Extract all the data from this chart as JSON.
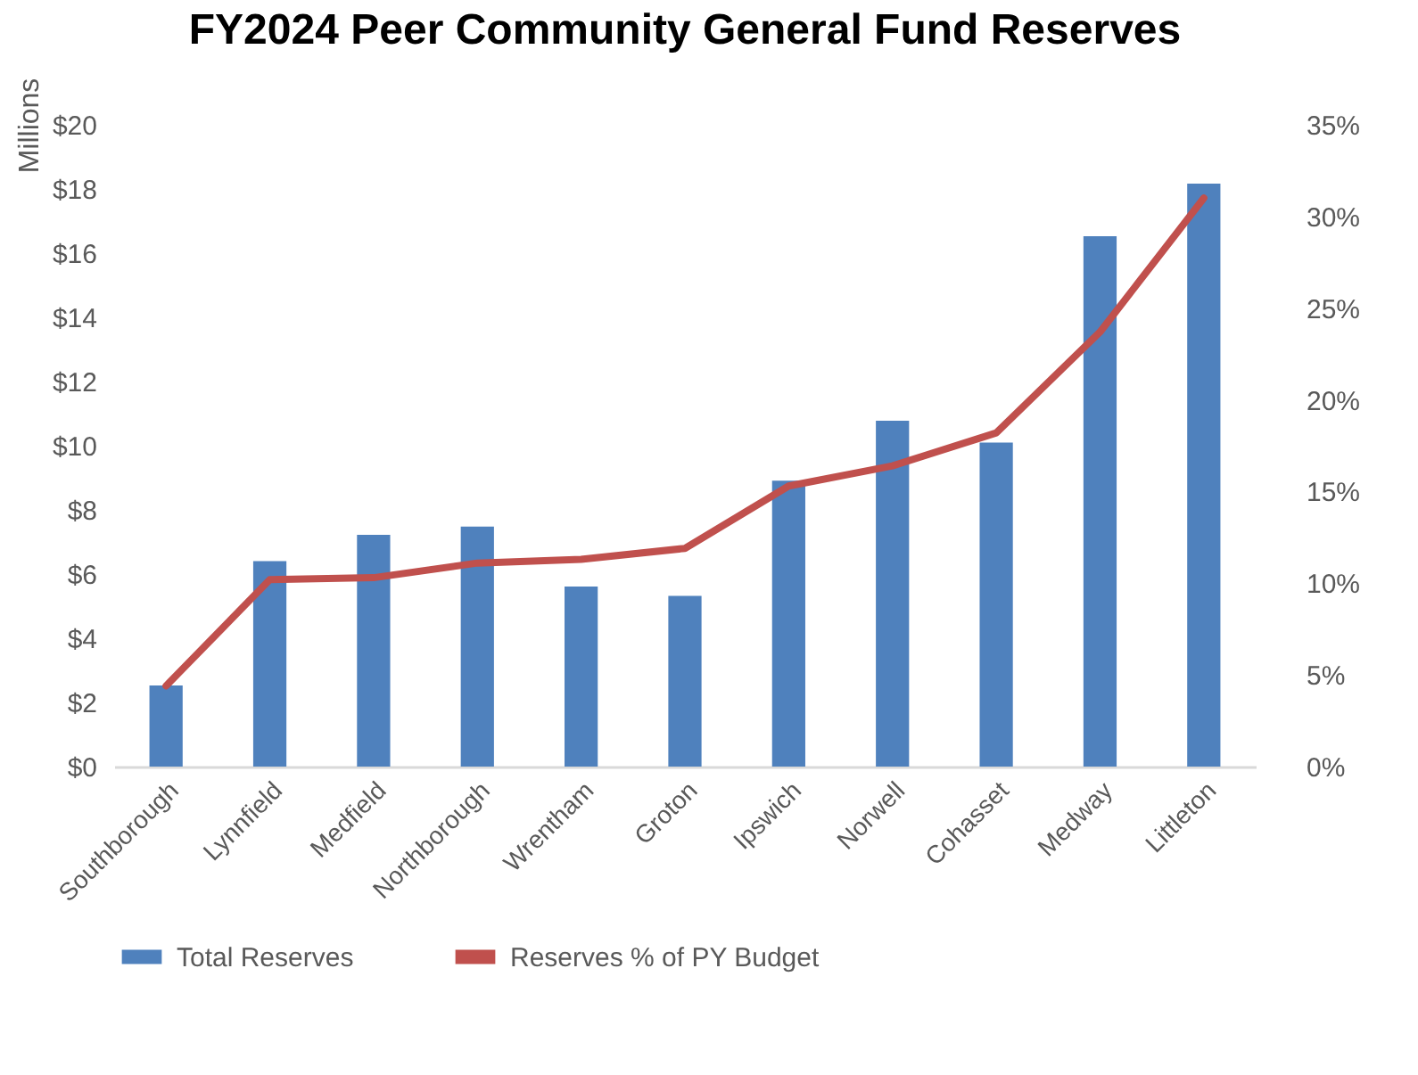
{
  "chart_data": {
    "type": "bar",
    "title": "FY2024 Peer Community General Fund Reserves",
    "ylabel": "Millions",
    "categories": [
      "Southborough",
      "Lynnfield",
      "Medfield",
      "Northborough",
      "Wrentham",
      "Groton",
      "Ipswich",
      "Norwell",
      "Cohasset",
      "Medway",
      "Littleton"
    ],
    "series": [
      {
        "name": "Total Reserves",
        "color": "#4f81bd",
        "values": [
          2.53,
          6.4,
          7.22,
          7.48,
          5.61,
          5.32,
          8.91,
          10.78,
          10.1,
          16.53,
          18.17
        ]
      },
      {
        "name": "Reserves % of PY Budget",
        "type": "line",
        "axis": "y2",
        "color": "#c0504d",
        "values": [
          4.4,
          10.2,
          10.3,
          11.1,
          11.3,
          11.9,
          15.3,
          16.4,
          18.2,
          23.7,
          31.0
        ]
      }
    ],
    "ylim": [
      0,
      20
    ],
    "yticks": [
      {
        "value": 0,
        "label": "$0"
      },
      {
        "value": 2,
        "label": "$2"
      },
      {
        "value": 4,
        "label": "$4"
      },
      {
        "value": 6,
        "label": "$6"
      },
      {
        "value": 8,
        "label": "$8"
      },
      {
        "value": 10,
        "label": "$10"
      },
      {
        "value": 12,
        "label": "$12"
      },
      {
        "value": 14,
        "label": "$14"
      },
      {
        "value": 16,
        "label": "$16"
      },
      {
        "value": 18,
        "label": "$18"
      },
      {
        "value": 20,
        "label": "$20"
      }
    ],
    "y2lim": [
      0,
      35
    ],
    "y2ticks": [
      {
        "value": 0,
        "label": "0%"
      },
      {
        "value": 5,
        "label": "5%"
      },
      {
        "value": 10,
        "label": "10%"
      },
      {
        "value": 15,
        "label": "15%"
      },
      {
        "value": 20,
        "label": "20%"
      },
      {
        "value": 25,
        "label": "25%"
      },
      {
        "value": 30,
        "label": "30%"
      },
      {
        "value": 35,
        "label": "35%"
      }
    ],
    "grid": false,
    "legend": "bottom"
  }
}
